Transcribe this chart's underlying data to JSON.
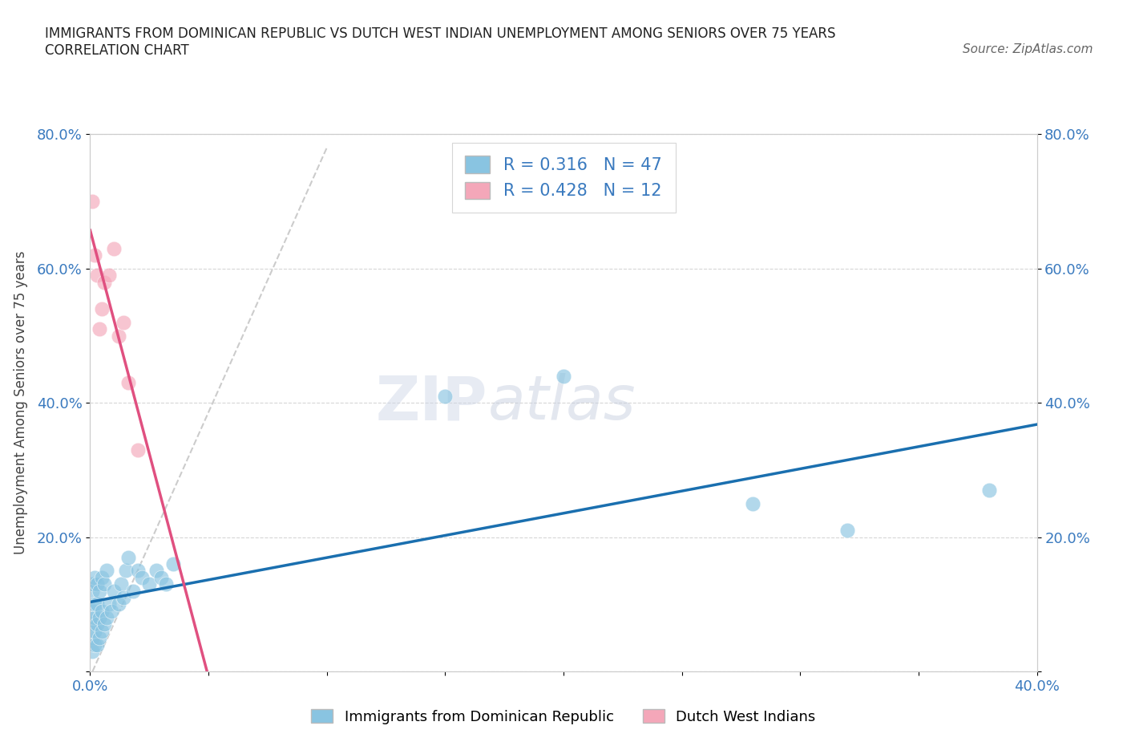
{
  "title_line1": "IMMIGRANTS FROM DOMINICAN REPUBLIC VS DUTCH WEST INDIAN UNEMPLOYMENT AMONG SENIORS OVER 75 YEARS",
  "title_line2": "CORRELATION CHART",
  "source_text": "Source: ZipAtlas.com",
  "ylabel": "Unemployment Among Seniors over 75 years",
  "xlim": [
    0.0,
    0.4
  ],
  "ylim": [
    0.0,
    0.8
  ],
  "blue_color": "#89c4e1",
  "pink_color": "#f4a7b9",
  "blue_line_color": "#1a6faf",
  "pink_line_color": "#e05080",
  "R_blue": 0.316,
  "N_blue": 47,
  "R_pink": 0.428,
  "N_pink": 12,
  "legend_label_blue": "Immigrants from Dominican Republic",
  "legend_label_pink": "Dutch West Indians",
  "watermark": "ZIPatlas",
  "blue_x": [
    0.001,
    0.001,
    0.001,
    0.001,
    0.001,
    0.002,
    0.002,
    0.002,
    0.002,
    0.002,
    0.003,
    0.003,
    0.003,
    0.003,
    0.004,
    0.004,
    0.004,
    0.004,
    0.005,
    0.005,
    0.005,
    0.005,
    0.006,
    0.006,
    0.007,
    0.007,
    0.008,
    0.008,
    0.009,
    0.01,
    0.011,
    0.012,
    0.013,
    0.014,
    0.015,
    0.016,
    0.018,
    0.02,
    0.022,
    0.025,
    0.028,
    0.03,
    0.032,
    0.15,
    0.2,
    0.32,
    0.38
  ],
  "blue_y": [
    0.03,
    0.05,
    0.07,
    0.09,
    0.12,
    0.04,
    0.06,
    0.08,
    0.11,
    0.13,
    0.04,
    0.07,
    0.1,
    0.13,
    0.05,
    0.08,
    0.11,
    0.14,
    0.06,
    0.09,
    0.12,
    0.15,
    0.07,
    0.12,
    0.08,
    0.14,
    0.09,
    0.16,
    0.11,
    0.13,
    0.14,
    0.13,
    0.15,
    0.11,
    0.14,
    0.17,
    0.12,
    0.15,
    0.16,
    0.14,
    0.16,
    0.15,
    0.14,
    0.41,
    0.44,
    0.21,
    0.27
  ],
  "pink_x": [
    0.001,
    0.002,
    0.003,
    0.004,
    0.005,
    0.006,
    0.007,
    0.008,
    0.009,
    0.01,
    0.012,
    0.014
  ],
  "pink_y": [
    0.33,
    0.55,
    0.59,
    0.59,
    0.5,
    0.55,
    0.48,
    0.55,
    0.65,
    0.7,
    0.47,
    0.55
  ]
}
